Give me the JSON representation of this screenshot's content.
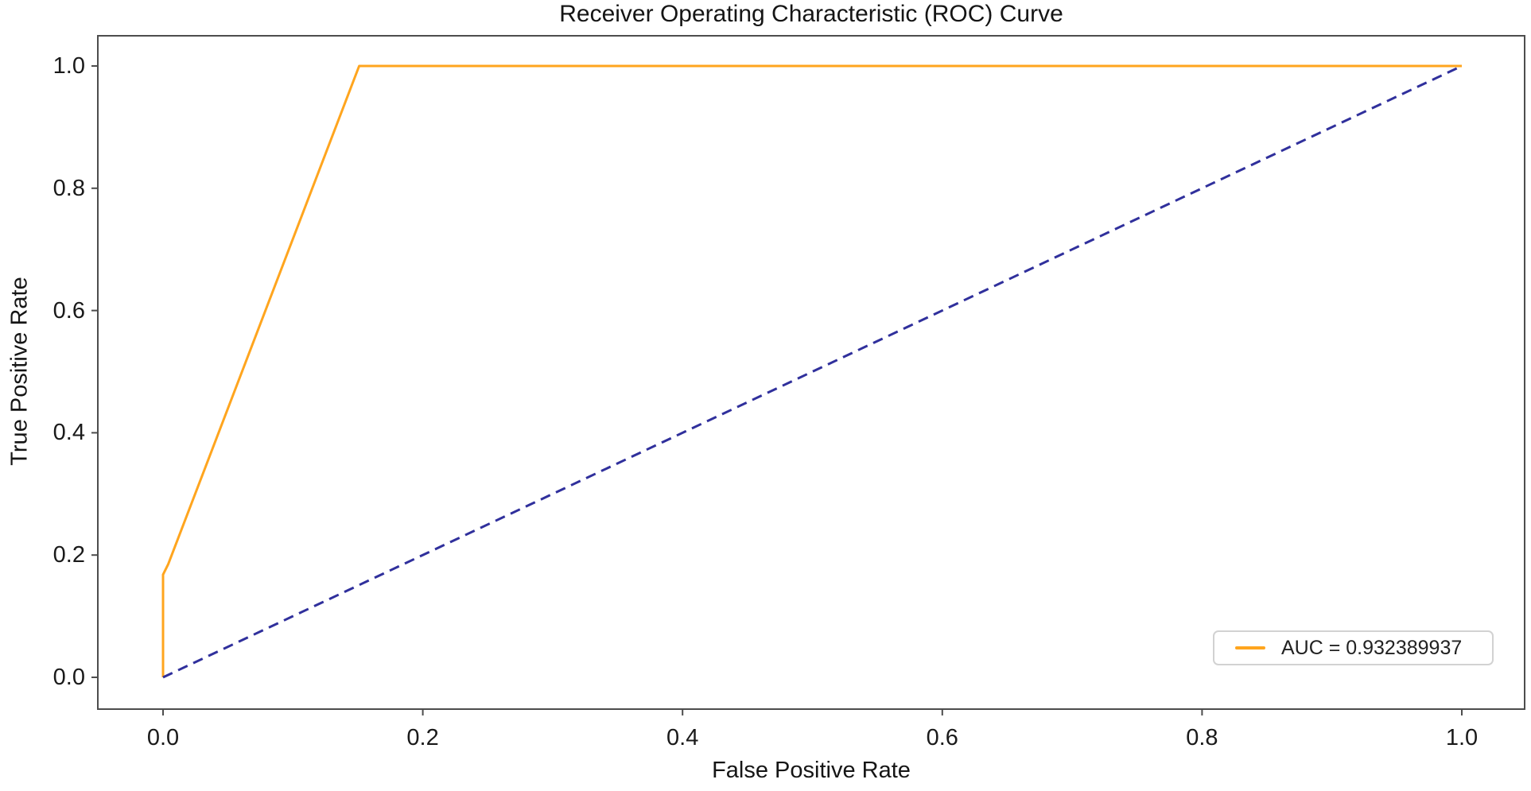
{
  "chart_data": {
    "type": "line",
    "title": "Receiver Operating Characteristic (ROC) Curve",
    "xlabel": "False Positive Rate",
    "ylabel": "True Positive Rate",
    "xlim": [
      0.0,
      1.0
    ],
    "ylim": [
      0.0,
      1.0
    ],
    "grid": false,
    "x_ticks": [
      0.0,
      0.2,
      0.4,
      0.6,
      0.8,
      1.0
    ],
    "x_tick_labels": [
      "0.0",
      "0.2",
      "0.4",
      "0.6",
      "0.8",
      "1.0"
    ],
    "y_ticks": [
      0.0,
      0.2,
      0.4,
      0.6,
      0.8,
      1.0
    ],
    "y_tick_labels": [
      "0.0",
      "0.2",
      "0.4",
      "0.6",
      "0.8",
      "1.0"
    ],
    "auc": 0.932389937,
    "series": [
      {
        "name": "roc-curve",
        "legend_label": "AUC = 0.932389937",
        "color": "#ffa51e",
        "style": "solid",
        "points": [
          [
            0.0,
            0.0
          ],
          [
            0.0,
            0.168
          ],
          [
            0.004,
            0.185
          ],
          [
            0.151,
            1.0
          ],
          [
            1.0,
            1.0
          ]
        ]
      },
      {
        "name": "chance-diagonal",
        "legend_label": null,
        "color": "#30309c",
        "style": "dashed",
        "points": [
          [
            0.0,
            0.0
          ],
          [
            1.0,
            1.0
          ]
        ]
      }
    ],
    "legend": {
      "position": "lower right",
      "entries": [
        {
          "label": "AUC = 0.932389937",
          "color": "#ffa51e",
          "style": "solid"
        }
      ]
    }
  },
  "colors": {
    "roc_line": "#ffa51e",
    "diagonal_line": "#30309c",
    "spine": "#4d4d4d",
    "text": "#1a1a1a",
    "legend_border": "#d2d2d2",
    "background": "#ffffff"
  }
}
